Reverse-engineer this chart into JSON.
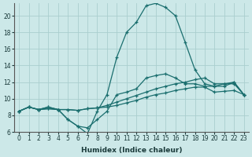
{
  "xlabel": "Humidex (Indice chaleur)",
  "bg_color": "#cce8e8",
  "grid_color": "#aacece",
  "line_color": "#1a6e6e",
  "xlim": [
    -0.5,
    23.5
  ],
  "ylim": [
    6,
    21.5
  ],
  "xticks": [
    0,
    1,
    2,
    3,
    4,
    5,
    6,
    7,
    8,
    9,
    10,
    11,
    12,
    13,
    14,
    15,
    16,
    17,
    18,
    19,
    20,
    21,
    22,
    23
  ],
  "yticks": [
    6,
    8,
    10,
    12,
    14,
    16,
    18,
    20
  ],
  "series": [
    {
      "x": [
        0,
        1,
        2,
        3,
        4,
        5,
        6,
        7,
        8,
        9,
        10,
        11,
        12,
        13,
        14,
        15,
        16,
        17,
        18,
        19,
        20,
        21,
        22,
        23
      ],
      "y": [
        8.5,
        9.0,
        8.7,
        8.8,
        8.7,
        8.7,
        8.6,
        8.8,
        8.9,
        9.0,
        9.2,
        9.5,
        9.8,
        10.2,
        10.5,
        10.7,
        11.0,
        11.2,
        11.4,
        11.4,
        10.8,
        10.9,
        11.0,
        10.5
      ]
    },
    {
      "x": [
        0,
        1,
        2,
        3,
        4,
        5,
        6,
        7,
        8,
        9,
        10,
        11,
        12,
        13,
        14,
        15,
        16,
        17,
        18,
        19,
        20,
        21,
        22,
        23
      ],
      "y": [
        8.5,
        9.0,
        8.7,
        8.8,
        8.7,
        8.7,
        8.6,
        8.8,
        8.9,
        9.2,
        9.6,
        10.0,
        10.4,
        10.8,
        11.2,
        11.5,
        11.8,
        12.0,
        12.3,
        12.5,
        11.8,
        11.8,
        11.8,
        10.5
      ]
    },
    {
      "x": [
        0,
        1,
        2,
        3,
        4,
        5,
        6,
        7,
        8,
        9,
        10,
        11,
        12,
        13,
        14,
        15,
        16,
        17,
        18,
        19,
        20,
        21,
        22,
        23
      ],
      "y": [
        8.5,
        9.0,
        8.7,
        9.0,
        8.7,
        7.5,
        6.7,
        6.5,
        7.5,
        8.5,
        10.5,
        10.8,
        11.2,
        12.5,
        12.8,
        13.0,
        12.5,
        11.8,
        11.8,
        11.5,
        11.5,
        11.8,
        12.0,
        10.5
      ]
    },
    {
      "x": [
        0,
        1,
        2,
        3,
        4,
        5,
        6,
        7,
        8,
        9,
        10,
        11,
        12,
        13,
        14,
        15,
        16,
        17,
        18,
        19,
        20,
        21,
        22,
        23
      ],
      "y": [
        8.5,
        9.0,
        8.7,
        9.0,
        8.7,
        7.5,
        6.7,
        5.8,
        8.5,
        10.5,
        15.0,
        18.0,
        19.2,
        21.2,
        21.5,
        21.0,
        20.0,
        16.8,
        13.5,
        11.8,
        11.5,
        11.5,
        12.0,
        10.5
      ]
    }
  ]
}
